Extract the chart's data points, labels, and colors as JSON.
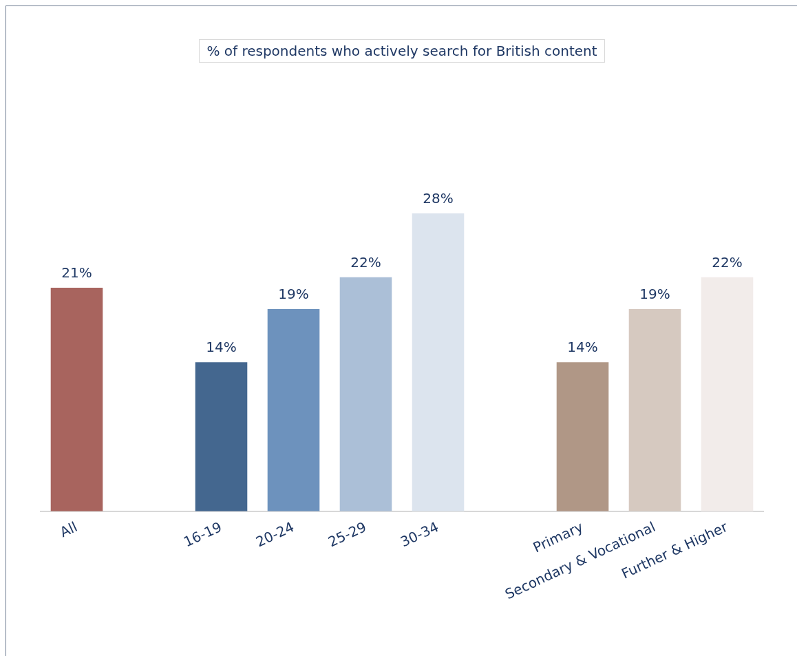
{
  "chart_data": {
    "type": "bar",
    "title": "% of respondents who actively search for British content",
    "categories": [
      "All",
      null,
      "16-19",
      "20-24",
      "25-29",
      "30-34",
      null,
      "Primary",
      "Secondary & Vocational",
      "Further & Higher"
    ],
    "values": [
      21,
      null,
      14,
      19,
      22,
      28,
      null,
      14,
      19,
      22
    ],
    "value_labels": [
      "21%",
      null,
      "14%",
      "19%",
      "22%",
      "28%",
      null,
      "14%",
      "19%",
      "22%"
    ],
    "colors": [
      "#a8645e",
      null,
      "#44678f",
      "#6d92bd",
      "#abbfd7",
      "#dce4ee",
      null,
      "#b09786",
      "#d6c9c0",
      "#f2ecea"
    ],
    "grid": false,
    "legend": false
  }
}
